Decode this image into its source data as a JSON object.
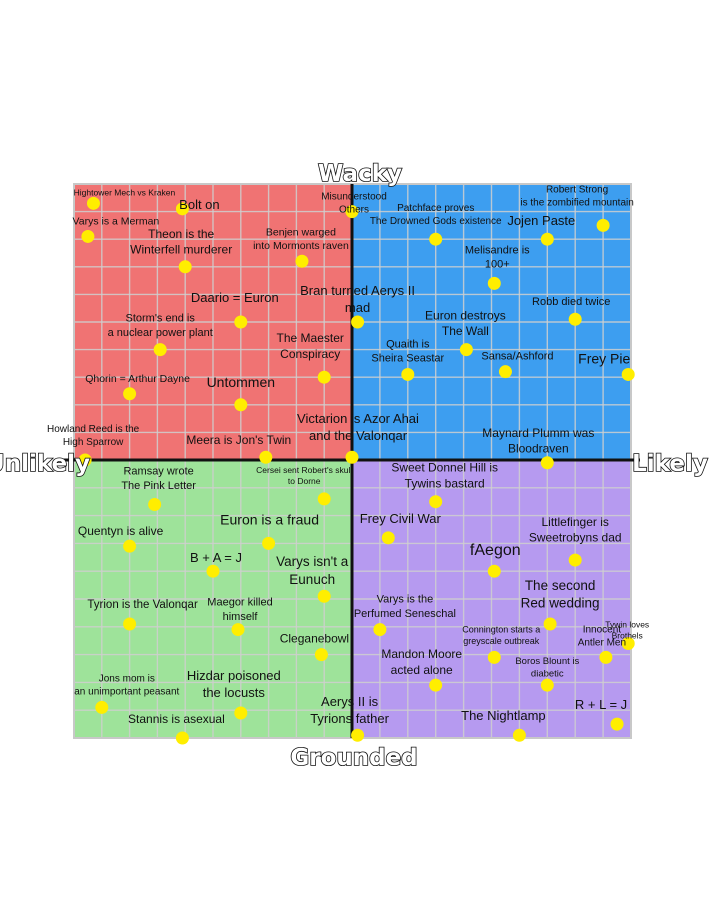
{
  "chart_data": {
    "type": "scatter",
    "title": "",
    "xlabel_left": "Unlikely",
    "xlabel_right": "Likely",
    "ylabel_top": "Wacky",
    "ylabel_bottom": "Grounded",
    "xlim": [
      -1,
      1
    ],
    "ylim": [
      -1,
      1
    ],
    "grid": true,
    "quadrant_colors": {
      "top_left": "#f07373",
      "top_right": "#3d9ef0",
      "bottom_left": "#9ee39a",
      "bottom_right": "#b69af0"
    },
    "point_color": "#ffee00",
    "points": [
      {
        "label": "Hightower Mech vs Kraken",
        "x": -0.93,
        "y": 0.93
      },
      {
        "label": "Bolt on",
        "x": -0.61,
        "y": 0.91
      },
      {
        "label": "Misunderstood Others",
        "x": 0.0,
        "y": 0.9
      },
      {
        "label": "Varys is a Merman",
        "x": -0.95,
        "y": 0.81
      },
      {
        "label": "Theon is the Winterfell murderer",
        "x": -0.6,
        "y": 0.7
      },
      {
        "label": "Benjen warged into Mormonts raven",
        "x": -0.18,
        "y": 0.72
      },
      {
        "label": "Patchface proves The Drowned Gods existence",
        "x": 0.3,
        "y": 0.8
      },
      {
        "label": "Jojen Paste",
        "x": 0.7,
        "y": 0.8
      },
      {
        "label": "Robert Strong is the zombified mountain",
        "x": 0.9,
        "y": 0.85
      },
      {
        "label": "Melisandre is 100+",
        "x": 0.51,
        "y": 0.64
      },
      {
        "label": "Daario = Euron",
        "x": -0.4,
        "y": 0.5
      },
      {
        "label": "Storm's end is a nuclear power plant",
        "x": -0.69,
        "y": 0.4
      },
      {
        "label": "Bran turned Aerys II mad",
        "x": 0.02,
        "y": 0.5
      },
      {
        "label": "Robb died twice",
        "x": 0.8,
        "y": 0.51
      },
      {
        "label": "Euron destroys The Wall",
        "x": 0.41,
        "y": 0.4
      },
      {
        "label": "Quaith is Sheira Seastar",
        "x": 0.2,
        "y": 0.31
      },
      {
        "label": "Sansa/Ashford",
        "x": 0.55,
        "y": 0.32
      },
      {
        "label": "Frey Pie",
        "x": 0.99,
        "y": 0.31
      },
      {
        "label": "The Maester Conspiracy",
        "x": -0.1,
        "y": 0.3
      },
      {
        "label": "Qhorin = Arthur Dayne",
        "x": -0.8,
        "y": 0.24
      },
      {
        "label": "Untommen",
        "x": -0.4,
        "y": 0.2
      },
      {
        "label": "Howland Reed is the High Sparrow",
        "x": -0.96,
        "y": 0.0
      },
      {
        "label": "Meera is Jon's Twin",
        "x": -0.31,
        "y": 0.01
      },
      {
        "label": "Victarion is Azor Ahai and the Valonqar",
        "x": 0.0,
        "y": 0.01
      },
      {
        "label": "Maynard Plumm was Bloodraven",
        "x": 0.7,
        "y": -0.01
      },
      {
        "label": "Ramsay wrote The Pink Letter",
        "x": -0.71,
        "y": -0.16
      },
      {
        "label": "Cersei sent Robert's skull to Dorne",
        "x": -0.1,
        "y": -0.14
      },
      {
        "label": "Sweet Donnel Hill is Tywins bastard",
        "x": 0.3,
        "y": -0.15
      },
      {
        "label": "Quentyn is alive",
        "x": -0.8,
        "y": -0.31
      },
      {
        "label": "Euron is a fraud",
        "x": -0.3,
        "y": -0.3
      },
      {
        "label": "B + A = J",
        "x": -0.5,
        "y": -0.4
      },
      {
        "label": "Frey Civil War",
        "x": 0.13,
        "y": -0.28
      },
      {
        "label": "Littlefinger is Sweetrobyns dad",
        "x": 0.8,
        "y": -0.36
      },
      {
        "label": "fAegon",
        "x": 0.51,
        "y": -0.4
      },
      {
        "label": "Varys isn't a Eunuch",
        "x": -0.1,
        "y": -0.49
      },
      {
        "label": "Tyrion is the Valonqar",
        "x": -0.8,
        "y": -0.59
      },
      {
        "label": "Maegor killed himself",
        "x": -0.41,
        "y": -0.61
      },
      {
        "label": "The second Red wedding",
        "x": 0.71,
        "y": -0.59
      },
      {
        "label": "Varys is the Perfumed Seneschal",
        "x": 0.1,
        "y": -0.61
      },
      {
        "label": "Cleganebowl",
        "x": -0.11,
        "y": -0.7
      },
      {
        "label": "Connington starts a greyscale outbreak",
        "x": 0.51,
        "y": -0.71
      },
      {
        "label": "Innocent Antler Men",
        "x": 0.91,
        "y": -0.71
      },
      {
        "label": "Tywin loves Brothels",
        "x": 0.99,
        "y": -0.66
      },
      {
        "label": "Mandon Moore acted alone",
        "x": 0.3,
        "y": -0.81
      },
      {
        "label": "Boros Blount is diabetic",
        "x": 0.7,
        "y": -0.81
      },
      {
        "label": "Jons mom is an unimportant peasant",
        "x": -0.9,
        "y": -0.89
      },
      {
        "label": "Hizdar poisoned the locusts",
        "x": -0.4,
        "y": -0.91
      },
      {
        "label": "Stannis is asexual",
        "x": -0.61,
        "y": -1.0
      },
      {
        "label": "Aerys II is Tyrions father",
        "x": 0.02,
        "y": -0.99
      },
      {
        "label": "The Nightlamp",
        "x": 0.6,
        "y": -0.99
      },
      {
        "label": "R + L = J",
        "x": 0.95,
        "y": -0.95
      }
    ]
  }
}
